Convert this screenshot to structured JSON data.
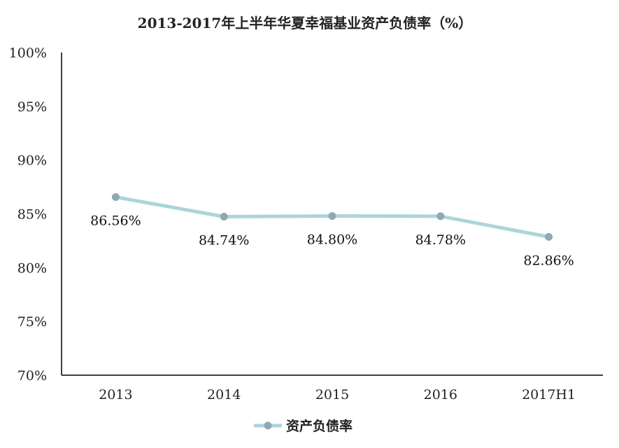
{
  "chart_data": {
    "type": "line",
    "title": "2013-2017年上半年华夏幸福基业资产负债率（%）",
    "xlabel": "",
    "ylabel": "",
    "categories": [
      "2013",
      "2014",
      "2015",
      "2016",
      "2017H1"
    ],
    "series": [
      {
        "name": "资产负债率",
        "values": [
          86.56,
          84.74,
          84.8,
          84.78,
          82.86
        ],
        "labels": [
          "86.56%",
          "84.74%",
          "84.80%",
          "84.78%",
          "82.86%"
        ],
        "line_color": "#add4db",
        "marker_color": "#8fa9b2"
      }
    ],
    "ylim": [
      70,
      100
    ],
    "y_ticks": [
      70,
      75,
      80,
      85,
      90,
      95,
      100
    ],
    "y_tick_labels": [
      "70%",
      "75%",
      "80%",
      "85%",
      "90%",
      "95%",
      "100%"
    ],
    "grid": false,
    "legend": "bottom-center"
  }
}
